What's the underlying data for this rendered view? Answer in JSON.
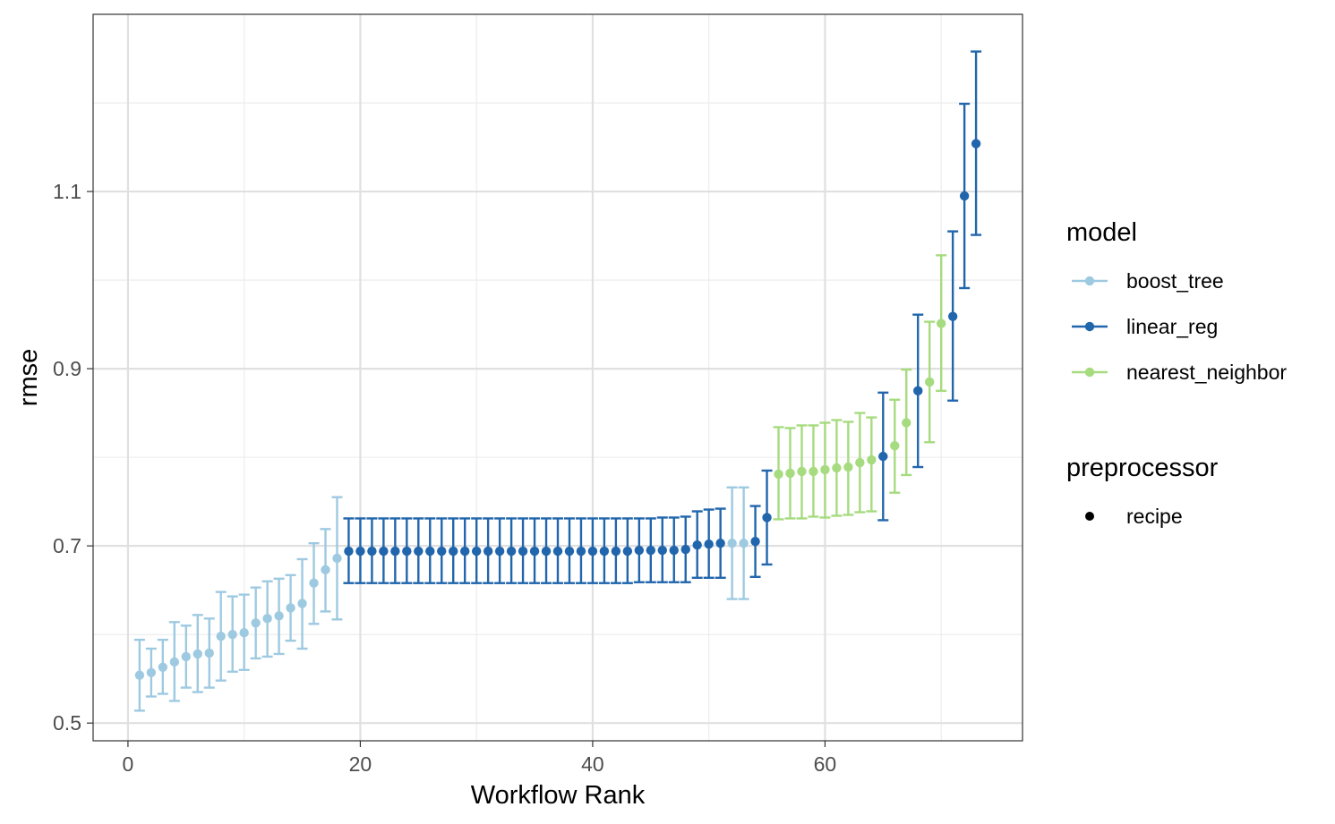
{
  "chart_data": {
    "type": "scatter",
    "xlabel": "Workflow Rank",
    "ylabel": "rmse",
    "xlim": [
      -3,
      77
    ],
    "ylim": [
      0.48,
      1.3
    ],
    "x_ticks": [
      0,
      20,
      40,
      60
    ],
    "y_ticks": [
      0.5,
      0.7,
      0.9,
      1.1
    ],
    "x_tick_labels": [
      "0",
      "20",
      "40",
      "60"
    ],
    "y_tick_labels": [
      "0.5",
      "0.7",
      "0.9",
      "1.1"
    ],
    "grid": true,
    "legend_position": "right",
    "legend": {
      "model_title": "model",
      "preprocessor_title": "preprocessor",
      "preprocessor_items": [
        "recipe"
      ]
    },
    "series": [
      {
        "name": "boost_tree",
        "color": "#9ecae1",
        "points": [
          {
            "x": 1,
            "y": 0.554,
            "lo": 0.514,
            "hi": 0.594
          },
          {
            "x": 2,
            "y": 0.557,
            "lo": 0.53,
            "hi": 0.584
          },
          {
            "x": 3,
            "y": 0.563,
            "lo": 0.533,
            "hi": 0.594
          },
          {
            "x": 4,
            "y": 0.569,
            "lo": 0.525,
            "hi": 0.614
          },
          {
            "x": 5,
            "y": 0.575,
            "lo": 0.54,
            "hi": 0.61
          },
          {
            "x": 6,
            "y": 0.578,
            "lo": 0.535,
            "hi": 0.622
          },
          {
            "x": 7,
            "y": 0.579,
            "lo": 0.54,
            "hi": 0.618
          },
          {
            "x": 8,
            "y": 0.598,
            "lo": 0.548,
            "hi": 0.648
          },
          {
            "x": 9,
            "y": 0.6,
            "lo": 0.558,
            "hi": 0.643
          },
          {
            "x": 10,
            "y": 0.602,
            "lo": 0.56,
            "hi": 0.645
          },
          {
            "x": 11,
            "y": 0.613,
            "lo": 0.573,
            "hi": 0.653
          },
          {
            "x": 12,
            "y": 0.618,
            "lo": 0.575,
            "hi": 0.66
          },
          {
            "x": 13,
            "y": 0.621,
            "lo": 0.578,
            "hi": 0.663
          },
          {
            "x": 14,
            "y": 0.63,
            "lo": 0.593,
            "hi": 0.667
          },
          {
            "x": 15,
            "y": 0.635,
            "lo": 0.584,
            "hi": 0.685
          },
          {
            "x": 16,
            "y": 0.658,
            "lo": 0.612,
            "hi": 0.703
          },
          {
            "x": 17,
            "y": 0.673,
            "lo": 0.626,
            "hi": 0.719
          },
          {
            "x": 18,
            "y": 0.686,
            "lo": 0.617,
            "hi": 0.755
          },
          {
            "x": 52,
            "y": 0.703,
            "lo": 0.64,
            "hi": 0.766
          },
          {
            "x": 53,
            "y": 0.703,
            "lo": 0.64,
            "hi": 0.766
          }
        ]
      },
      {
        "name": "linear_reg",
        "color": "#2166ac",
        "points": [
          {
            "x": 19,
            "y": 0.694,
            "lo": 0.658,
            "hi": 0.731
          },
          {
            "x": 20,
            "y": 0.694,
            "lo": 0.658,
            "hi": 0.731
          },
          {
            "x": 21,
            "y": 0.694,
            "lo": 0.658,
            "hi": 0.731
          },
          {
            "x": 22,
            "y": 0.694,
            "lo": 0.658,
            "hi": 0.731
          },
          {
            "x": 23,
            "y": 0.694,
            "lo": 0.658,
            "hi": 0.731
          },
          {
            "x": 24,
            "y": 0.694,
            "lo": 0.658,
            "hi": 0.731
          },
          {
            "x": 25,
            "y": 0.694,
            "lo": 0.658,
            "hi": 0.731
          },
          {
            "x": 26,
            "y": 0.694,
            "lo": 0.658,
            "hi": 0.731
          },
          {
            "x": 27,
            "y": 0.694,
            "lo": 0.658,
            "hi": 0.731
          },
          {
            "x": 28,
            "y": 0.694,
            "lo": 0.658,
            "hi": 0.731
          },
          {
            "x": 29,
            "y": 0.694,
            "lo": 0.658,
            "hi": 0.731
          },
          {
            "x": 30,
            "y": 0.694,
            "lo": 0.658,
            "hi": 0.731
          },
          {
            "x": 31,
            "y": 0.694,
            "lo": 0.658,
            "hi": 0.731
          },
          {
            "x": 32,
            "y": 0.694,
            "lo": 0.658,
            "hi": 0.731
          },
          {
            "x": 33,
            "y": 0.694,
            "lo": 0.658,
            "hi": 0.731
          },
          {
            "x": 34,
            "y": 0.694,
            "lo": 0.658,
            "hi": 0.731
          },
          {
            "x": 35,
            "y": 0.694,
            "lo": 0.658,
            "hi": 0.731
          },
          {
            "x": 36,
            "y": 0.694,
            "lo": 0.658,
            "hi": 0.731
          },
          {
            "x": 37,
            "y": 0.694,
            "lo": 0.658,
            "hi": 0.731
          },
          {
            "x": 38,
            "y": 0.694,
            "lo": 0.658,
            "hi": 0.731
          },
          {
            "x": 39,
            "y": 0.694,
            "lo": 0.658,
            "hi": 0.731
          },
          {
            "x": 40,
            "y": 0.694,
            "lo": 0.658,
            "hi": 0.731
          },
          {
            "x": 41,
            "y": 0.694,
            "lo": 0.658,
            "hi": 0.731
          },
          {
            "x": 42,
            "y": 0.694,
            "lo": 0.658,
            "hi": 0.731
          },
          {
            "x": 43,
            "y": 0.694,
            "lo": 0.658,
            "hi": 0.731
          },
          {
            "x": 44,
            "y": 0.695,
            "lo": 0.659,
            "hi": 0.731
          },
          {
            "x": 45,
            "y": 0.695,
            "lo": 0.659,
            "hi": 0.731
          },
          {
            "x": 46,
            "y": 0.695,
            "lo": 0.659,
            "hi": 0.732
          },
          {
            "x": 47,
            "y": 0.695,
            "lo": 0.659,
            "hi": 0.732
          },
          {
            "x": 48,
            "y": 0.696,
            "lo": 0.659,
            "hi": 0.733
          },
          {
            "x": 49,
            "y": 0.701,
            "lo": 0.664,
            "hi": 0.739
          },
          {
            "x": 50,
            "y": 0.702,
            "lo": 0.664,
            "hi": 0.741
          },
          {
            "x": 51,
            "y": 0.703,
            "lo": 0.664,
            "hi": 0.742
          },
          {
            "x": 54,
            "y": 0.705,
            "lo": 0.665,
            "hi": 0.745
          },
          {
            "x": 55,
            "y": 0.732,
            "lo": 0.679,
            "hi": 0.785
          },
          {
            "x": 65,
            "y": 0.801,
            "lo": 0.729,
            "hi": 0.873
          },
          {
            "x": 68,
            "y": 0.875,
            "lo": 0.789,
            "hi": 0.961
          },
          {
            "x": 71,
            "y": 0.959,
            "lo": 0.864,
            "hi": 1.055
          },
          {
            "x": 72,
            "y": 1.095,
            "lo": 0.991,
            "hi": 1.199
          },
          {
            "x": 73,
            "y": 1.154,
            "lo": 1.051,
            "hi": 1.258
          }
        ]
      },
      {
        "name": "nearest_neighbor",
        "color": "#a6db7f",
        "points": [
          {
            "x": 56,
            "y": 0.781,
            "lo": 0.73,
            "hi": 0.834
          },
          {
            "x": 57,
            "y": 0.782,
            "lo": 0.731,
            "hi": 0.833
          },
          {
            "x": 58,
            "y": 0.784,
            "lo": 0.731,
            "hi": 0.836
          },
          {
            "x": 59,
            "y": 0.784,
            "lo": 0.733,
            "hi": 0.836
          },
          {
            "x": 60,
            "y": 0.786,
            "lo": 0.732,
            "hi": 0.839
          },
          {
            "x": 61,
            "y": 0.788,
            "lo": 0.734,
            "hi": 0.842
          },
          {
            "x": 62,
            "y": 0.789,
            "lo": 0.735,
            "hi": 0.84
          },
          {
            "x": 63,
            "y": 0.794,
            "lo": 0.738,
            "hi": 0.85
          },
          {
            "x": 64,
            "y": 0.797,
            "lo": 0.739,
            "hi": 0.845
          },
          {
            "x": 66,
            "y": 0.813,
            "lo": 0.76,
            "hi": 0.865
          },
          {
            "x": 67,
            "y": 0.839,
            "lo": 0.78,
            "hi": 0.899
          },
          {
            "x": 69,
            "y": 0.885,
            "lo": 0.817,
            "hi": 0.953
          },
          {
            "x": 70,
            "y": 0.951,
            "lo": 0.875,
            "hi": 1.028
          }
        ]
      }
    ]
  }
}
